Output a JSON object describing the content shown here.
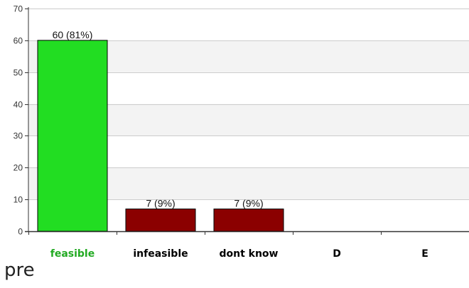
{
  "chart_data": {
    "type": "bar",
    "categories": [
      "feasible",
      "infeasible",
      "dont know",
      "D",
      "E"
    ],
    "values": [
      60,
      7,
      7,
      0,
      0
    ],
    "data_labels": [
      "60 (81%)",
      "7 (9%)",
      "7 (9%)",
      "",
      ""
    ],
    "bar_colors": [
      "#22dd22",
      "#8b0000",
      "#8b0000",
      "#8b0000",
      "#8b0000"
    ],
    "category_label_colors": [
      "#22aa22",
      "#000000",
      "#000000",
      "#000000",
      "#000000"
    ],
    "ylim": [
      0,
      70
    ],
    "yticks": [
      0,
      10,
      20,
      30,
      40,
      50,
      60,
      70
    ],
    "grid": true,
    "band_color": "#f3f3f3",
    "title": "",
    "xlabel": "",
    "ylabel": ""
  },
  "footer_text": "pre"
}
